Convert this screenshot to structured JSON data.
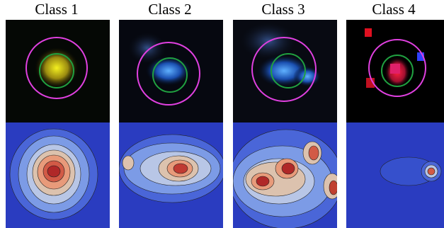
{
  "panels": [
    {
      "title": "Class 1"
    },
    {
      "title": "Class 2"
    },
    {
      "title": "Class 3"
    },
    {
      "title": "Class 4"
    }
  ]
}
